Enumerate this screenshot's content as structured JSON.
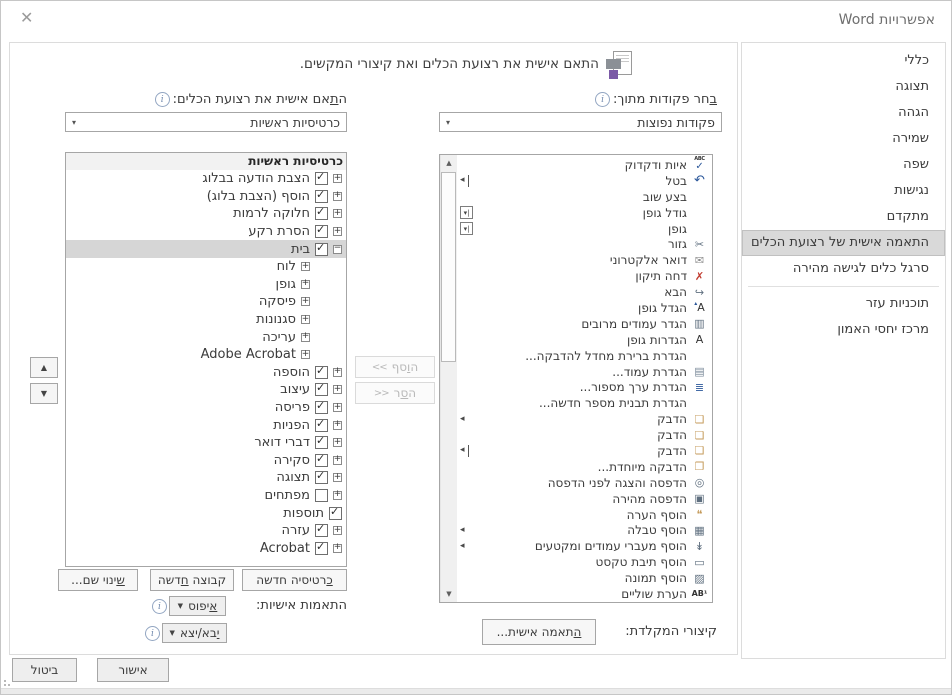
{
  "window": {
    "title": "אפשרויות Word",
    "close_glyph": "✕"
  },
  "sidebar": {
    "items": [
      {
        "label": "כללי"
      },
      {
        "label": "תצוגה"
      },
      {
        "label": "הגהה"
      },
      {
        "label": "שמירה"
      },
      {
        "label": "שפה"
      },
      {
        "label": "נגישות"
      },
      {
        "label": "מתקדם"
      },
      {
        "label": "התאמה אישית של רצועת הכלים",
        "selected": true
      },
      {
        "label": "סרגל כלים לגישה מהירה",
        "divider_after": true
      },
      {
        "label": "תוכניות עזר"
      },
      {
        "label": "מרכז יחסי האמון"
      }
    ]
  },
  "header": {
    "text": "התאם אישית את רצועת הכלים ואת קיצורי המקשים."
  },
  "commands": {
    "label": {
      "pre": "",
      "key": "ב",
      "post": "חר פקודות מתוך:"
    },
    "dropdown_value": "פקודות נפוצות",
    "dropdown_arrow": "▾",
    "keyboard_label": "קיצורי המקלדת:",
    "customize_button": {
      "pre": "",
      "key": "ה",
      "post": "תאמה אישית..."
    },
    "items": [
      {
        "label": "איות ודקדוק",
        "icon": "spelling-grammar-icon"
      },
      {
        "label": "בטל",
        "icon": "undo-icon",
        "marker": "submenu-cursor"
      },
      {
        "label": "בצע שוב"
      },
      {
        "label": "גודל גופן",
        "marker": "combo"
      },
      {
        "label": "גופן",
        "marker": "combo"
      },
      {
        "label": "גזור",
        "icon": "cut-icon"
      },
      {
        "label": "דואר אלקטרוני",
        "icon": "email-icon"
      },
      {
        "label": "דחה תיקון",
        "icon": "reject-revision-icon"
      },
      {
        "label": "הבא",
        "icon": "next-icon"
      },
      {
        "label": "הגדל גופן",
        "icon": "grow-font-icon"
      },
      {
        "label": "הגדר עמודים מרובים",
        "icon": "multiple-pages-icon"
      },
      {
        "label": "הגדרות גופן",
        "icon": "font-settings-icon"
      },
      {
        "label": "הגדרת ברירת מחדל להדבקה..."
      },
      {
        "label": "הגדרת עמוד...",
        "icon": "page-setup-icon"
      },
      {
        "label": "הגדרת ערך מספור...",
        "icon": "set-numbering-icon"
      },
      {
        "label": "הגדרת תבנית מספר חדשה..."
      },
      {
        "label": "הדבק",
        "icon": "paste-icon",
        "marker": "submenu"
      },
      {
        "label": "הדבק",
        "icon": "paste-icon"
      },
      {
        "label": "הדבק",
        "icon": "paste-icon",
        "marker": "submenu-cursor"
      },
      {
        "label": "הדבקה מיוחדת...",
        "icon": "paste-special-icon"
      },
      {
        "label": "הדפסה והצגה לפני הדפסה",
        "icon": "print-preview-icon"
      },
      {
        "label": "הדפסה מהירה",
        "icon": "quick-print-icon"
      },
      {
        "label": "הוסף הערה",
        "icon": "insert-comment-icon"
      },
      {
        "label": "הוסף טבלה",
        "icon": "insert-table-icon",
        "marker": "submenu"
      },
      {
        "label": "הוסף מעברי עמודים ומקטעים",
        "icon": "page-breaks-icon",
        "marker": "submenu"
      },
      {
        "label": "הוסף תיבת טקסט",
        "icon": "text-box-icon"
      },
      {
        "label": "הוסף תמונה",
        "icon": "insert-picture-icon"
      },
      {
        "label": "הערת שוליים",
        "icon": "footnote-icon"
      }
    ]
  },
  "transfer": {
    "add": {
      "pre": "ה",
      "key": "ו",
      "post": "סף",
      "arrows": "<<"
    },
    "remove": {
      "pre": "ה",
      "key": "ס",
      "post": "ר",
      "arrows": ">>"
    }
  },
  "ribbon": {
    "label": {
      "pre": "ה",
      "key": "ת",
      "post": "אם אישית את רצועת הכלים:"
    },
    "dropdown_value": "כרטיסיות ראשיות",
    "dropdown_arrow": "▾",
    "list_header": "כרטיסיות ראשיות",
    "items": [
      {
        "label": "הצבת הודעה בבלוג",
        "checked": true,
        "expand": "plus",
        "level": 0
      },
      {
        "label": "הוסף (הצבת בלוג)",
        "checked": true,
        "expand": "plus",
        "level": 0
      },
      {
        "label": "חלוקה לרמות",
        "checked": true,
        "expand": "plus",
        "level": 0
      },
      {
        "label": "הסרת רקע",
        "checked": true,
        "expand": "plus",
        "level": 0
      },
      {
        "label": "בית",
        "checked": true,
        "expand": "minus",
        "level": 0,
        "selected": true
      },
      {
        "label": "לוח",
        "expand": "plus",
        "level": 1
      },
      {
        "label": "גופן",
        "expand": "plus",
        "level": 1
      },
      {
        "label": "פיסקה",
        "expand": "plus",
        "level": 1
      },
      {
        "label": "סגנונות",
        "expand": "plus",
        "level": 1
      },
      {
        "label": "עריכה",
        "expand": "plus",
        "level": 1
      },
      {
        "label": "Adobe Acrobat",
        "expand": "plus",
        "level": 1
      },
      {
        "label": "הוספה",
        "checked": true,
        "expand": "plus",
        "level": 0
      },
      {
        "label": "עיצוב",
        "checked": true,
        "expand": "plus",
        "level": 0
      },
      {
        "label": "פריסה",
        "checked": true,
        "expand": "plus",
        "level": 0
      },
      {
        "label": "הפניות",
        "checked": true,
        "expand": "plus",
        "level": 0
      },
      {
        "label": "דברי דואר",
        "checked": true,
        "expand": "plus",
        "level": 0
      },
      {
        "label": "סקירה",
        "checked": true,
        "expand": "plus",
        "level": 0
      },
      {
        "label": "תצוגה",
        "checked": true,
        "expand": "plus",
        "level": 0
      },
      {
        "label": "מפתחים",
        "checked": false,
        "expand": "plus",
        "level": 0
      },
      {
        "label": "תוספות",
        "checked": true,
        "expand": "none",
        "level": 0
      },
      {
        "label": "עזרה",
        "checked": true,
        "expand": "plus",
        "level": 0
      },
      {
        "label": "Acrobat",
        "checked": true,
        "expand": "plus",
        "level": 0
      }
    ],
    "new_tab_button": {
      "pre": "",
      "key": "כ",
      "post": "רטיסיה חדשה"
    },
    "new_group_button": {
      "pre": "קבוצה ",
      "key": "ח",
      "post": "דשה"
    },
    "rename_button": {
      "pre": "",
      "key": "ש",
      "post": "ינוי שם..."
    },
    "customizations_label": "התאמות אישיות:",
    "reset_button": {
      "pre": "",
      "key": "א",
      "post": "יפוס"
    },
    "import_export_button": {
      "pre": "",
      "key": "י",
      "post": "בא/יצא"
    },
    "move_up_glyph": "▲",
    "move_down_glyph": "▼"
  },
  "footer": {
    "ok": "אישור",
    "cancel": "ביטול"
  },
  "icons": {
    "spelling-grammar-icon": {
      "glyph": "✓",
      "color": "#2b579a",
      "top": "ABC"
    },
    "undo-icon": {
      "glyph": "↶",
      "color": "#2b579a",
      "size": 13
    },
    "cut-icon": {
      "glyph": "✂",
      "color": "#5f6f7f"
    },
    "email-icon": {
      "glyph": "✉",
      "color": "#8a8a8a"
    },
    "reject-revision-icon": {
      "glyph": "✗",
      "color": "#c13b2f"
    },
    "next-icon": {
      "glyph": "↪",
      "color": "#5f6f7f"
    },
    "grow-font-icon": {
      "glyph": "A",
      "color": "#333333",
      "badge": "▴",
      "badgeColor": "#2b579a"
    },
    "multiple-pages-icon": {
      "glyph": "▥",
      "color": "#5f6f7f"
    },
    "font-settings-icon": {
      "glyph": "A",
      "color": "#333333"
    },
    "page-setup-icon": {
      "glyph": "▤",
      "color": "#7a8a99"
    },
    "set-numbering-icon": {
      "glyph": "≣",
      "color": "#2b579a"
    },
    "paste-icon": {
      "glyph": "❏",
      "color": "#c49a5a"
    },
    "paste-special-icon": {
      "glyph": "❐",
      "color": "#c49a5a"
    },
    "print-preview-icon": {
      "glyph": "◎",
      "color": "#5f6f7f"
    },
    "quick-print-icon": {
      "glyph": "▣",
      "color": "#5f6f7f"
    },
    "insert-comment-icon": {
      "glyph": "❝",
      "color": "#c49a5a"
    },
    "insert-table-icon": {
      "glyph": "▦",
      "color": "#5f6f7f"
    },
    "page-breaks-icon": {
      "glyph": "↡",
      "color": "#5f6f7f"
    },
    "text-box-icon": {
      "glyph": "▭",
      "color": "#5f6f7f"
    },
    "insert-picture-icon": {
      "glyph": "▨",
      "color": "#5f6f7f"
    },
    "footnote-icon": {
      "glyph": "AB¹",
      "color": "#333333",
      "text": true
    }
  }
}
